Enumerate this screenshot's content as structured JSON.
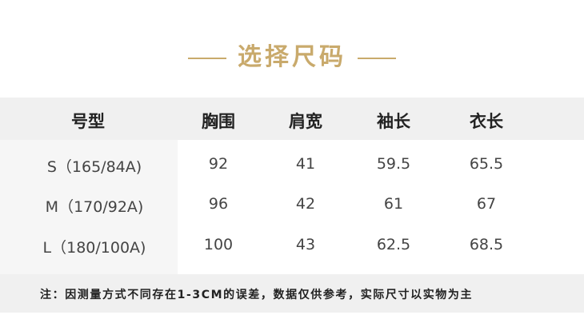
{
  "title": "选择尺码",
  "colors": {
    "accent": "#c9aa6c",
    "header_bg": "#f0f0f0"
  },
  "table": {
    "headers": [
      "号型",
      "胸围",
      "肩宽",
      "袖长",
      "衣长"
    ],
    "rows": [
      [
        "S（165/84A)",
        "92",
        "41",
        "59.5",
        "65.5"
      ],
      [
        "M（170/92A)",
        "96",
        "42",
        "61",
        "67"
      ],
      [
        "L（180/100A)",
        "100",
        "43",
        "62.5",
        "68.5"
      ]
    ]
  },
  "note": "注：因测量方式不同存在1-3CM的误差，数据仅供参考，实际尺寸以实物为主"
}
